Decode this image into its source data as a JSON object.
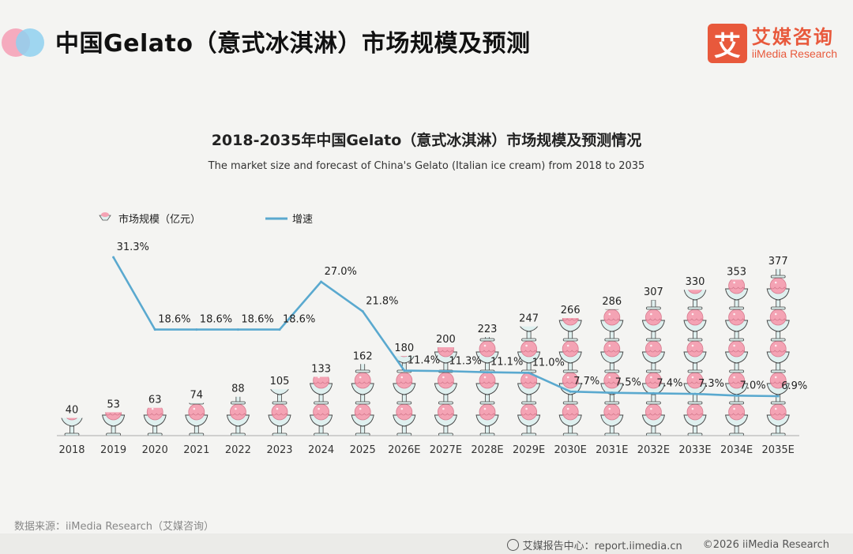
{
  "header": {
    "title": "中国Gelato（意式冰淇淋）市场规模及预测",
    "brand_cn": "艾媒咨询",
    "brand_en": "iiMedia Research",
    "brand_mark": "艾"
  },
  "footer": {
    "source": "数据来源：iiMedia Research（艾媒咨询）",
    "center_label": "艾媒报告中心：report.iimedia.cn",
    "copyright": "©2026  iiMedia Research"
  },
  "chart_data": {
    "type": "bar",
    "title": "2018-2035年中国Gelato（意式冰淇淋）市场规模及预测情况",
    "subtitle": "The market size and forecast of China's Gelato (Italian ice cream) from 2018 to 2035",
    "categories": [
      "2018",
      "2019",
      "2020",
      "2021",
      "2022",
      "2023",
      "2024",
      "2025",
      "2026E",
      "2027E",
      "2028E",
      "2029E",
      "2030E",
      "2031E",
      "2032E",
      "2033E",
      "2034E",
      "2035E"
    ],
    "series": [
      {
        "name": "市场规模（亿元）",
        "type": "bar",
        "values": [
          40,
          53,
          63,
          74,
          88,
          105,
          133,
          162,
          180,
          200,
          223,
          247,
          266,
          286,
          307,
          330,
          353,
          377
        ],
        "labels": [
          "40",
          "53",
          "63",
          "74",
          "88",
          "105",
          "133",
          "162",
          "180",
          "200",
          "223",
          "247",
          "266",
          "286",
          "307",
          "330",
          "353",
          "377"
        ]
      },
      {
        "name": "增速",
        "type": "line",
        "values": [
          null,
          31.3,
          18.6,
          18.6,
          18.6,
          18.6,
          27.0,
          21.8,
          11.4,
          11.3,
          11.1,
          11.0,
          7.7,
          7.5,
          7.4,
          7.3,
          7.0,
          6.9
        ],
        "labels": [
          "",
          "31.3%",
          "18.6%",
          "18.6%",
          "18.6%",
          "18.6%",
          "27.0%",
          "21.8%",
          "11.4%",
          "11.3%",
          "11.1%",
          "11.0%",
          "7.7%",
          "7.5%",
          "7.4%",
          "7.3%",
          "7.0%",
          "6.9%"
        ]
      }
    ],
    "legend_position": "top-left",
    "colors": {
      "line": "#5aa9cf",
      "scoop": "#f4a3b4",
      "scoop_dark": "#d67b8f",
      "cup": "#dff0ef",
      "cup_stroke": "#444444",
      "axis": "#999999"
    },
    "grid": false
  }
}
